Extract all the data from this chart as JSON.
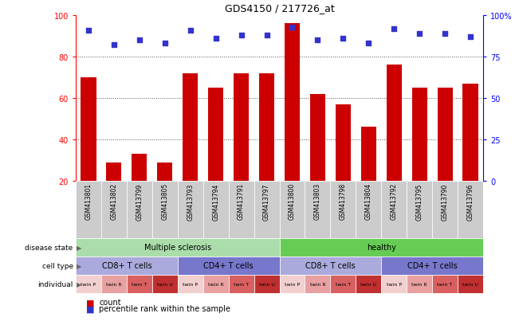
{
  "title": "GDS4150 / 217726_at",
  "samples": [
    "GSM413801",
    "GSM413802",
    "GSM413799",
    "GSM413805",
    "GSM413793",
    "GSM413794",
    "GSM413791",
    "GSM413797",
    "GSM413800",
    "GSM413803",
    "GSM413798",
    "GSM413804",
    "GSM413792",
    "GSM413795",
    "GSM413790",
    "GSM413796"
  ],
  "counts": [
    70,
    29,
    33,
    29,
    72,
    65,
    72,
    72,
    96,
    62,
    57,
    46,
    76,
    65,
    65,
    67
  ],
  "percentile_ranks": [
    91,
    82,
    85,
    83,
    91,
    86,
    88,
    88,
    93,
    85,
    86,
    83,
    92,
    89,
    89,
    87
  ],
  "bar_color": "#cc0000",
  "dot_color": "#3333cc",
  "ylim_left": [
    20,
    100
  ],
  "ylim_right": [
    0,
    100
  ],
  "yticks_left": [
    20,
    40,
    60,
    80,
    100
  ],
  "yticks_right": [
    0,
    25,
    50,
    75,
    100
  ],
  "ytick_labels_right": [
    "0",
    "25",
    "50",
    "75",
    "100%"
  ],
  "disease_state_groups": [
    {
      "label": "Multiple sclerosis",
      "start": 0,
      "end": 8,
      "color": "#aaddaa"
    },
    {
      "label": "healthy",
      "start": 8,
      "end": 16,
      "color": "#66cc55"
    }
  ],
  "cell_type_groups": [
    {
      "label": "CD8+ T cells",
      "start": 0,
      "end": 4,
      "color": "#aaaadd"
    },
    {
      "label": "CD4+ T cells",
      "start": 4,
      "end": 8,
      "color": "#7777cc"
    },
    {
      "label": "CD8+ T cells",
      "start": 8,
      "end": 12,
      "color": "#aaaadd"
    },
    {
      "label": "CD4+ T cells",
      "start": 12,
      "end": 16,
      "color": "#7777cc"
    }
  ],
  "individual_labels": [
    "twin P",
    "twin R",
    "twin T",
    "twin U",
    "twin P",
    "twin R",
    "twin T",
    "twin U",
    "twin P",
    "twin R",
    "twin T",
    "twin U",
    "twin P",
    "twin R",
    "twin T",
    "twin U"
  ],
  "individual_colors": [
    "#f2d0d0",
    "#e8a0a0",
    "#d96060",
    "#c03030",
    "#f2d0d0",
    "#e8a0a0",
    "#d96060",
    "#c03030",
    "#f2d0d0",
    "#e8a0a0",
    "#d96060",
    "#c03030",
    "#f2d0d0",
    "#e8a0a0",
    "#d96060",
    "#c03030"
  ],
  "background_color": "#ffffff",
  "sample_bg_color": "#cccccc",
  "grid_color": "#555555"
}
